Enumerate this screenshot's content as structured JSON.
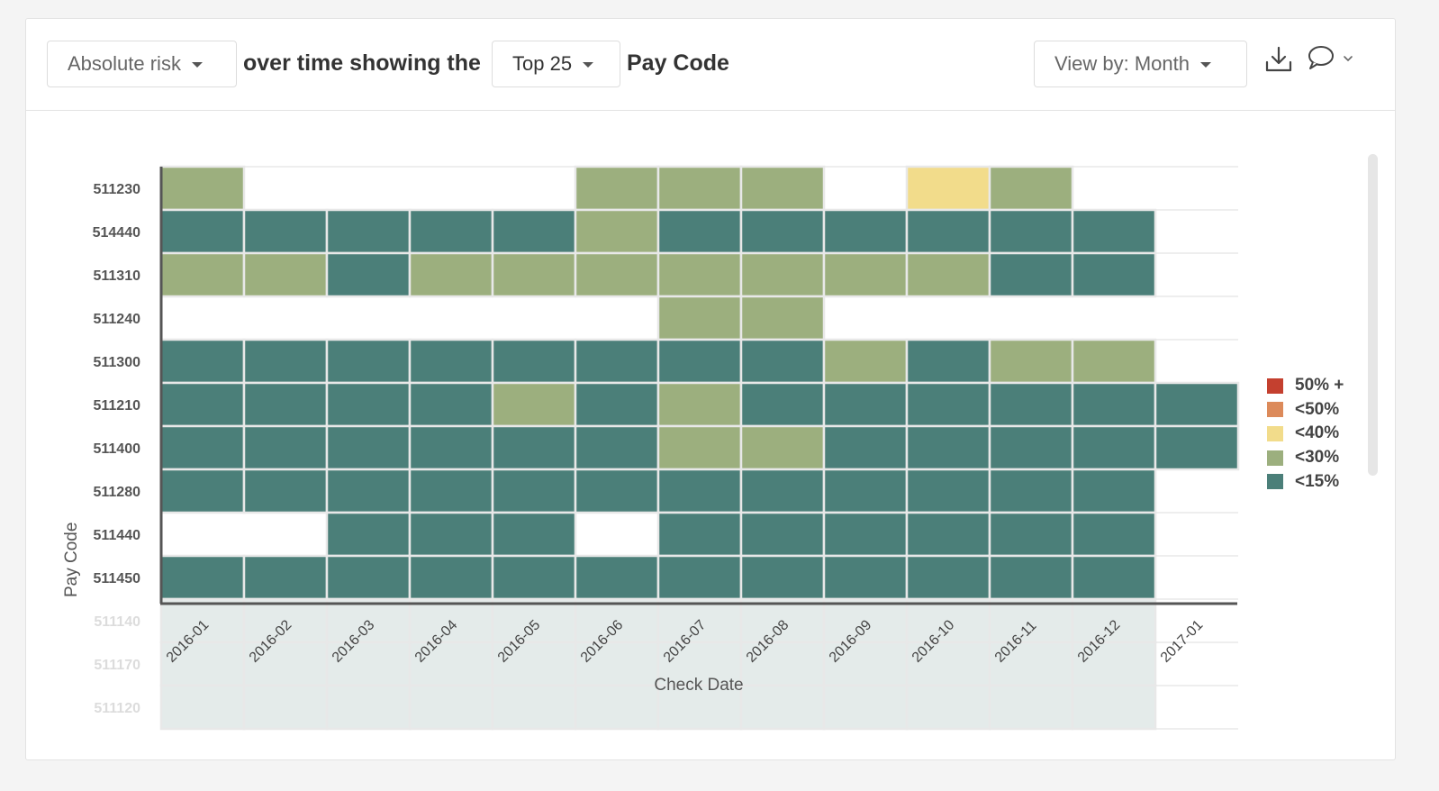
{
  "header": {
    "metric_dropdown": "Absolute risk",
    "text_over_time": "over time showing the",
    "top_dropdown": "Top 25",
    "text_pay_code": "Pay Code",
    "view_dropdown": "View by: Month",
    "download_icon": "download-icon",
    "comment_icon": "comment-icon"
  },
  "chart_data": {
    "type": "heatmap",
    "xlabel": "Check Date",
    "ylabel": "Pay Code",
    "x": [
      "2016-01",
      "2016-02",
      "2016-03",
      "2016-04",
      "2016-05",
      "2016-06",
      "2016-07",
      "2016-08",
      "2016-09",
      "2016-10",
      "2016-11",
      "2016-12",
      "2017-01"
    ],
    "y": [
      "511230",
      "514440",
      "511310",
      "511240",
      "511300",
      "511210",
      "511400",
      "511280",
      "511440",
      "511450",
      "511140",
      "511170",
      "511120"
    ],
    "faded_rows": [
      "511140",
      "511170",
      "511120"
    ],
    "legend": [
      {
        "label": "50% +",
        "color": "#c4402f"
      },
      {
        "label": "<50%",
        "color": "#dc8a5a"
      },
      {
        "label": "<40%",
        "color": "#f2dc8b"
      },
      {
        "label": "<30%",
        "color": "#9caf7e"
      },
      {
        "label": "<15%",
        "color": "#4b7f79"
      }
    ],
    "cells": [
      [
        "<30%",
        null,
        null,
        null,
        null,
        "<30%",
        "<30%",
        "<30%",
        null,
        "<40%",
        "<30%",
        null,
        null
      ],
      [
        "<15%",
        "<15%",
        "<15%",
        "<15%",
        "<15%",
        "<30%",
        "<15%",
        "<15%",
        "<15%",
        "<15%",
        "<15%",
        "<15%",
        null
      ],
      [
        "<30%",
        "<30%",
        "<15%",
        "<30%",
        "<30%",
        "<30%",
        "<30%",
        "<30%",
        "<30%",
        "<30%",
        "<15%",
        "<15%",
        null
      ],
      [
        null,
        null,
        null,
        null,
        null,
        null,
        "<30%",
        "<30%",
        null,
        null,
        null,
        null,
        null
      ],
      [
        "<15%",
        "<15%",
        "<15%",
        "<15%",
        "<15%",
        "<15%",
        "<15%",
        "<15%",
        "<30%",
        "<15%",
        "<30%",
        "<30%",
        null
      ],
      [
        "<15%",
        "<15%",
        "<15%",
        "<15%",
        "<30%",
        "<15%",
        "<30%",
        "<15%",
        "<15%",
        "<15%",
        "<15%",
        "<15%",
        "<15%"
      ],
      [
        "<15%",
        "<15%",
        "<15%",
        "<15%",
        "<15%",
        "<15%",
        "<30%",
        "<30%",
        "<15%",
        "<15%",
        "<15%",
        "<15%",
        "<15%"
      ],
      [
        "<15%",
        "<15%",
        "<15%",
        "<15%",
        "<15%",
        "<15%",
        "<15%",
        "<15%",
        "<15%",
        "<15%",
        "<15%",
        "<15%",
        null
      ],
      [
        null,
        null,
        "<15%",
        "<15%",
        "<15%",
        null,
        "<15%",
        "<15%",
        "<15%",
        "<15%",
        "<15%",
        "<15%",
        null
      ],
      [
        "<15%",
        "<15%",
        "<15%",
        "<15%",
        "<15%",
        "<15%",
        "<15%",
        "<15%",
        "<15%",
        "<15%",
        "<15%",
        "<15%",
        null
      ],
      [
        "x",
        "x",
        "x",
        "x",
        "x",
        "x",
        "x",
        "x",
        "x",
        "x",
        "x",
        "x",
        null
      ],
      [
        "x",
        "x",
        "x",
        "x",
        "x",
        "x",
        "x",
        "x",
        "x",
        "x",
        "x",
        "x",
        null
      ],
      [
        "x",
        "x",
        "x",
        "x",
        "x",
        "x",
        "x",
        "x",
        "x",
        "x",
        "x",
        "x",
        null
      ]
    ]
  }
}
